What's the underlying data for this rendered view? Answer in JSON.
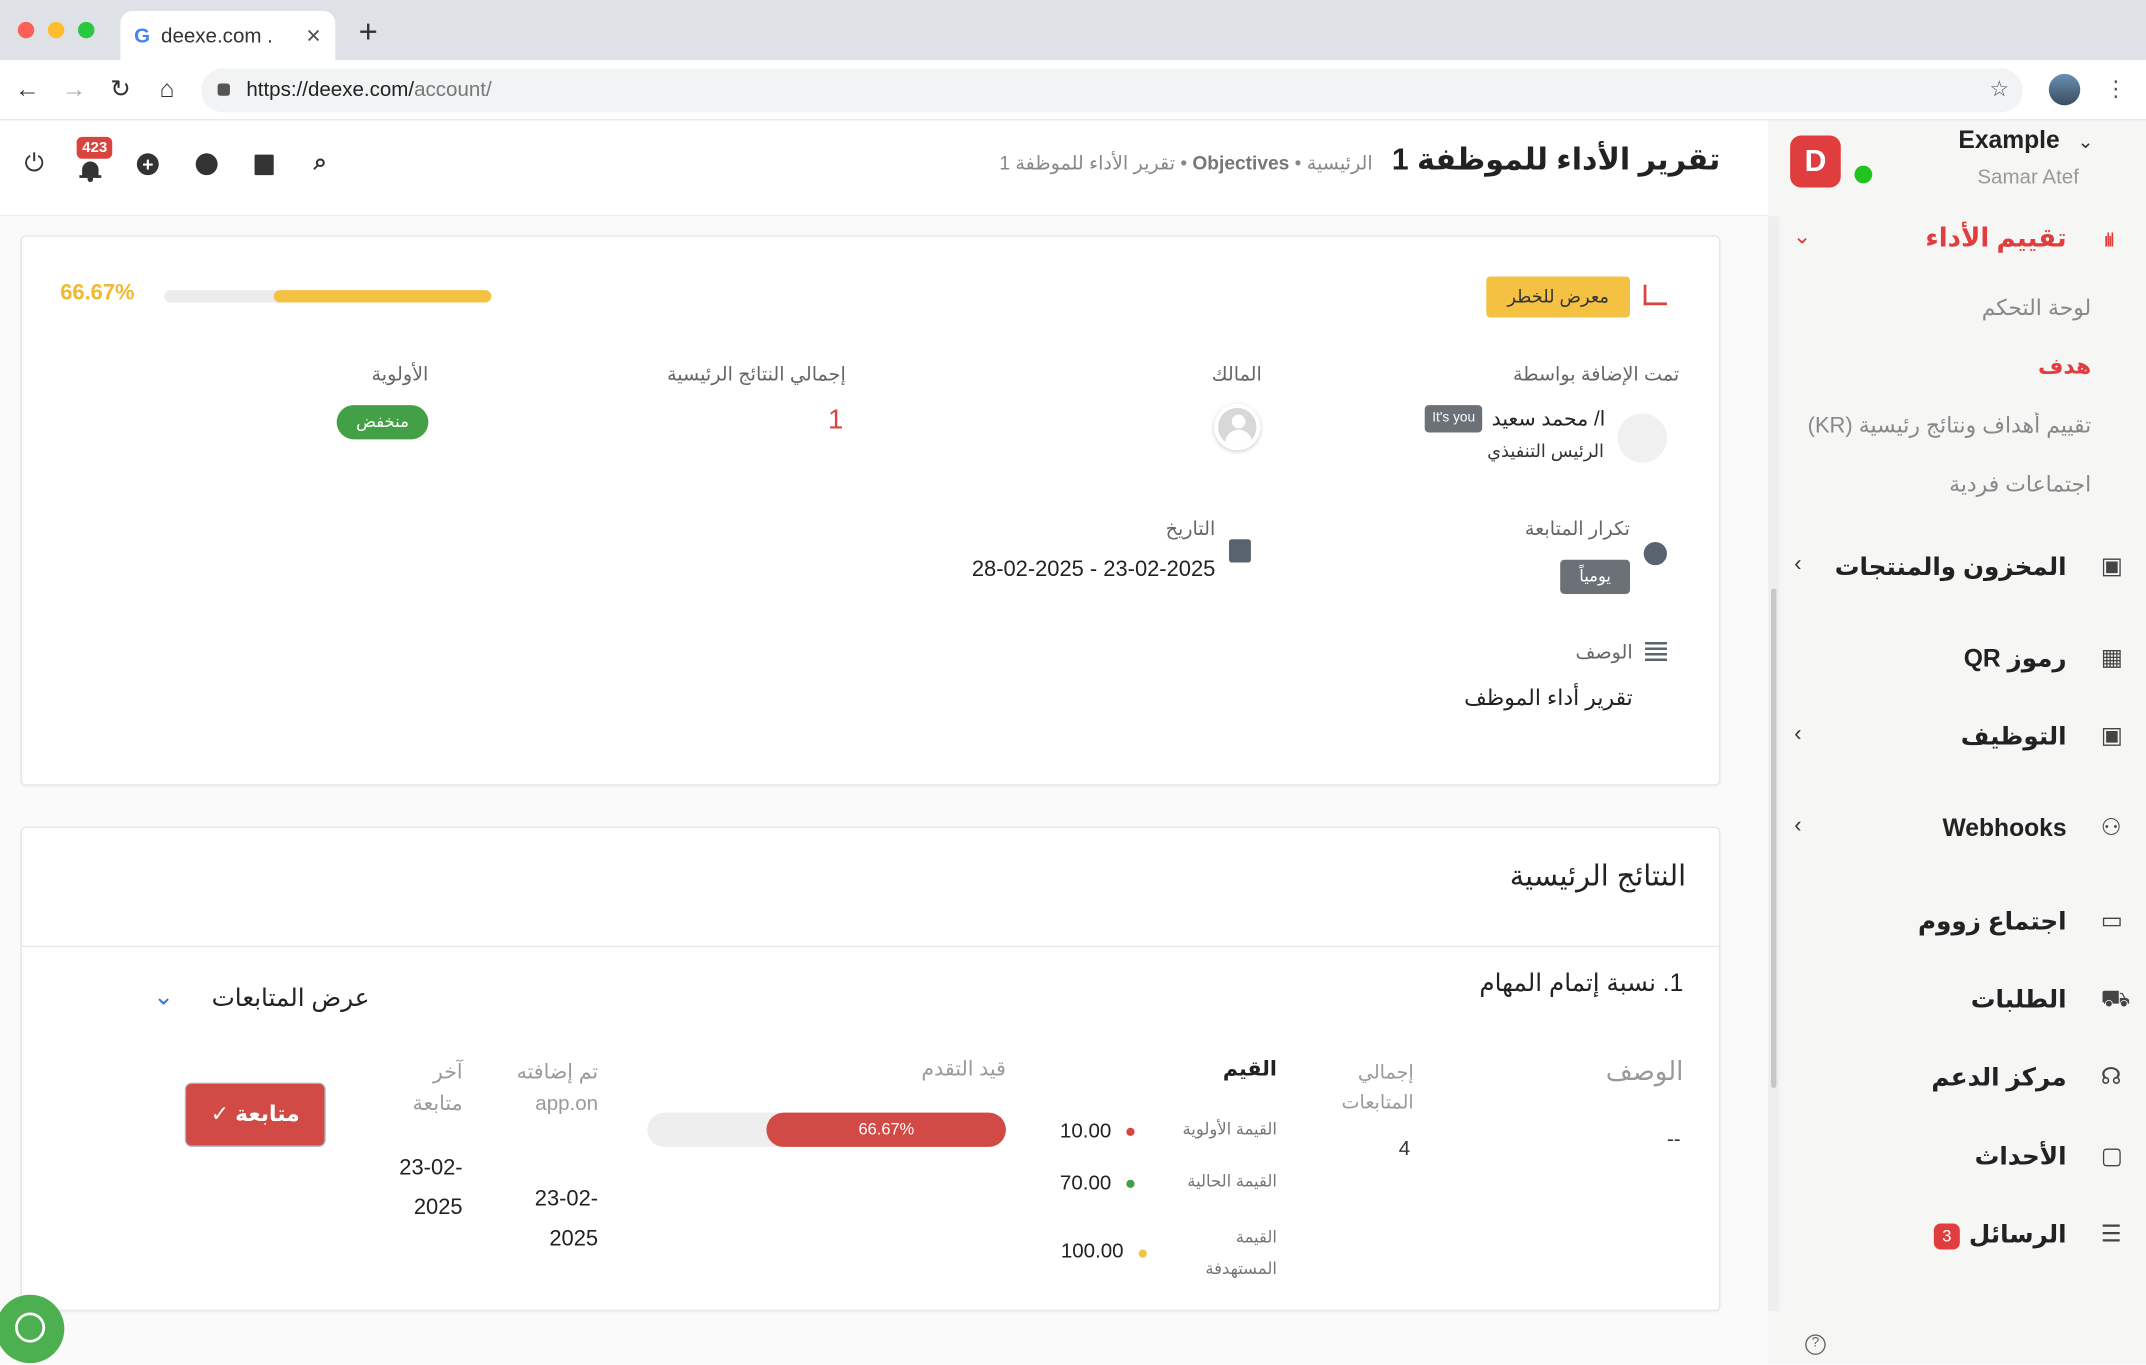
{
  "browser": {
    "tab_title": "deexe.com .",
    "url_host": "https://deexe.com/",
    "url_path": "account/"
  },
  "header": {
    "notification_count": "423",
    "title": "تقرير الأداء للموظفة 1",
    "breadcrumb": {
      "home": "الرئيسية",
      "sep": "•",
      "objectives": "Objectives",
      "current": "تقرير الأداء للموظفة 1"
    }
  },
  "sidebar": {
    "org": "Example",
    "user": "Samar Atef",
    "brand_color": "#e03e3e",
    "online_color": "#22c31f",
    "active_group": "تقييم الأداء",
    "sub_items": [
      {
        "label": "لوحة التحكم",
        "active": false
      },
      {
        "label": "هدف",
        "active": true
      },
      {
        "label": "تقييم أهداف ونتائج رئيسية (KR)",
        "active": false
      },
      {
        "label": "اجتماعات فردية",
        "active": false
      }
    ],
    "items": [
      {
        "label": "المخزون والمنتجات",
        "icon": "badge-icon"
      },
      {
        "label": "رموز QR",
        "icon": "qr-icon"
      },
      {
        "label": "التوظيف",
        "icon": "badge-icon"
      },
      {
        "label": "Webhooks",
        "icon": "webhook-icon"
      },
      {
        "label": "اجتماع زووم",
        "icon": "video-icon"
      },
      {
        "label": "الطلبات",
        "icon": "cart-icon"
      },
      {
        "label": "مركز الدعم",
        "icon": "headset-icon"
      },
      {
        "label": "الأحداث",
        "icon": "calendar-icon"
      },
      {
        "label": "الرسائل",
        "icon": "chat-icon",
        "badge": "3"
      }
    ]
  },
  "objective": {
    "progress_label": "66.67%",
    "progress": 66.67,
    "status": "معرض للخطر",
    "added_by_label": "تمت الإضافة بواسطة",
    "added_by_name": "ا/ محمد سعيد",
    "its_you": "It's you",
    "added_by_role": "الرئيس التنفيذي",
    "owner_label": "المالك",
    "total_kr_label": "إجمالي النتائج الرئيسية",
    "total_kr": "1",
    "priority_label": "الأولوية",
    "priority": "منخفض",
    "frequency_label": "تكرار المتابعة",
    "frequency": "يومياً",
    "date_label": "التاريخ",
    "date_range": "28-02-2025 - 23-02-2025",
    "description_label": "الوصف",
    "description": "تقرير أداء الموظف"
  },
  "key_results": {
    "title": "النتائج الرئيسية",
    "item_title": "1. نسبة إتمام المهام",
    "show_followups": "عرض المتابعات",
    "columns": {
      "description": "الوصف",
      "total_followups": "إجمالي المتابعات",
      "values": "القيم",
      "progress": "قيد التقدم",
      "added_on": "تم إضافته app.on",
      "last_followup": "آخر متابعة"
    },
    "row": {
      "description": "--",
      "total_followups": "4",
      "initial_label": "القيمة الأولوية",
      "initial": "10.00",
      "current_label": "القيمة الحالية",
      "current": "70.00",
      "target_label": "القيمة المستهدفة",
      "target": "100.00",
      "progress_label": "66.67%",
      "progress": 66.67,
      "added_on": "23-02-2025",
      "last_followup": "23-02-2025",
      "followup_button": "متابعة ✓"
    }
  }
}
